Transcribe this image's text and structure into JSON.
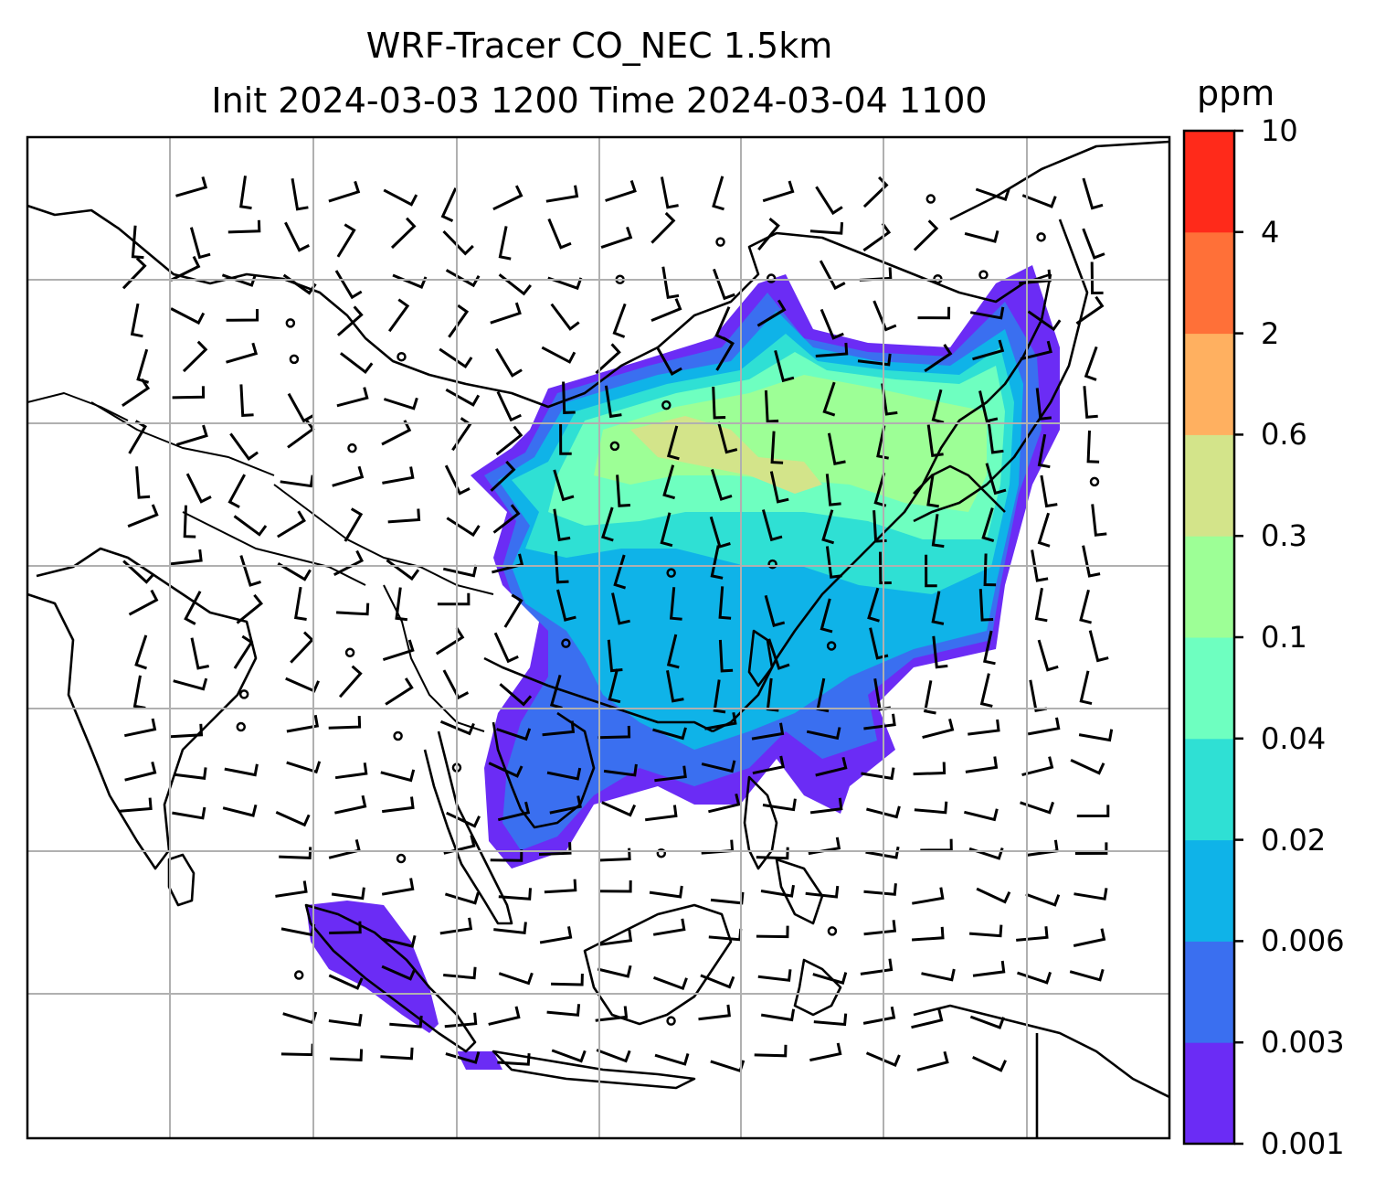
{
  "title_line1": "WRF-Tracer CO_NEC 1.5km",
  "title_line2": "Init 2024-03-03 1200 Time 2024-03-04 1100",
  "colorbar": {
    "unit": "ppm",
    "ticks": [
      "0.001",
      "0.003",
      "0.006",
      "0.02",
      "0.04",
      "0.1",
      "0.3",
      "0.6",
      "2",
      "4",
      "10"
    ],
    "colors": [
      "#6b2cf5",
      "#3a6ff0",
      "#0fb3e8",
      "#2fe0d4",
      "#6effc0",
      "#9dff96",
      "#d3e48a",
      "#ffb060",
      "#ff7038",
      "#ff2a1a"
    ]
  },
  "map": {
    "grid": "on",
    "features": [
      "coastlines",
      "country-borders",
      "wind-barbs",
      "CO tracer concentration"
    ]
  }
}
